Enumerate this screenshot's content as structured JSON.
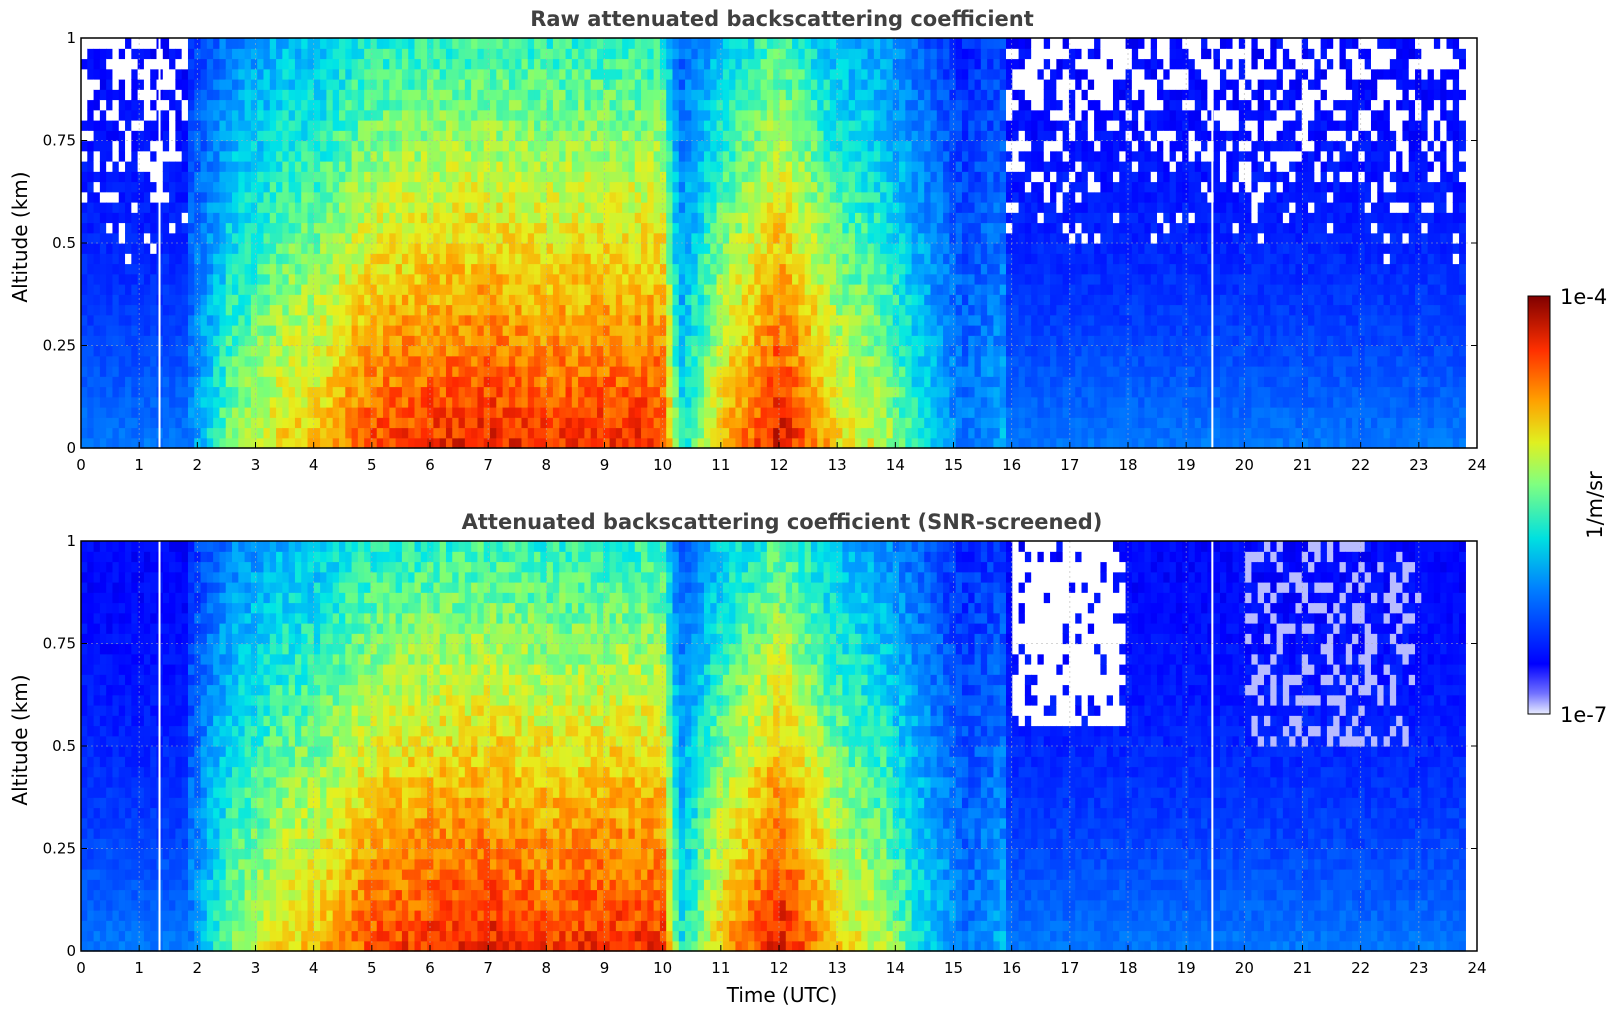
{
  "chart_data": [
    {
      "type": "heatmap",
      "title": "Raw attenuated backscattering coefficient",
      "xlabel": "",
      "ylabel": "Altitude (km)",
      "xlim": [
        0,
        24
      ],
      "ylim": [
        0,
        1
      ],
      "xticks": [
        "0",
        "1",
        "2",
        "3",
        "4",
        "5",
        "6",
        "7",
        "8",
        "9",
        "10",
        "11",
        "12",
        "13",
        "14",
        "15",
        "16",
        "17",
        "18",
        "19",
        "20",
        "21",
        "22",
        "23",
        "24"
      ],
      "yticks": [
        "0",
        "0.25",
        "0.5",
        "0.75",
        "1"
      ],
      "grid": true,
      "colormap": "jet",
      "screened": false,
      "data_end_hour": 23.8,
      "gaps_hour": [
        1.35,
        19.45
      ],
      "signal_profile": {
        "hours": [
          0,
          1.4,
          2.5,
          3.5,
          4.1,
          4.6,
          5.0,
          6.0,
          7.0,
          8.0,
          9.0,
          10.0,
          10.3,
          11.0,
          12.0,
          12.5,
          13.0,
          13.8,
          14.5,
          15.2,
          15.9,
          16.0,
          17.5,
          18.2,
          19.0,
          20.0,
          22.0,
          23.8
        ],
        "level": [
          0.1,
          0.15,
          0.55,
          0.7,
          0.72,
          0.8,
          0.85,
          0.88,
          0.9,
          0.87,
          0.88,
          0.88,
          0.45,
          0.72,
          0.93,
          0.82,
          0.7,
          0.62,
          0.45,
          0.3,
          0.38,
          0.06,
          0.06,
          0.12,
          0.06,
          0.05,
          0.05,
          0.05
        ]
      }
    },
    {
      "type": "heatmap",
      "title": "Attenuated backscattering coefficient (SNR-screened)",
      "xlabel": "Time (UTC)",
      "ylabel": "Altitude (km)",
      "xlim": [
        0,
        24
      ],
      "ylim": [
        0,
        1
      ],
      "xticks": [
        "0",
        "1",
        "2",
        "3",
        "4",
        "5",
        "6",
        "7",
        "8",
        "9",
        "10",
        "11",
        "12",
        "13",
        "14",
        "15",
        "16",
        "17",
        "18",
        "19",
        "20",
        "21",
        "22",
        "23",
        "24"
      ],
      "yticks": [
        "0",
        "0.25",
        "0.5",
        "0.75",
        "1"
      ],
      "grid": true,
      "colormap": "jet",
      "screened": true,
      "data_end_hour": 23.8,
      "gaps_hour": [
        1.35,
        19.45
      ],
      "signal_profile": {
        "hours": [
          0,
          1.4,
          2.5,
          3.5,
          4.1,
          4.6,
          5.0,
          6.0,
          7.0,
          8.0,
          9.0,
          10.0,
          10.3,
          11.0,
          12.0,
          12.5,
          13.0,
          13.8,
          14.5,
          15.2,
          15.9,
          16.0,
          17.5,
          18.2,
          19.0,
          20.0,
          22.0,
          23.8
        ],
        "level": [
          0.1,
          0.15,
          0.55,
          0.7,
          0.72,
          0.8,
          0.85,
          0.88,
          0.9,
          0.87,
          0.88,
          0.88,
          0.45,
          0.72,
          0.93,
          0.82,
          0.7,
          0.62,
          0.45,
          0.3,
          0.38,
          0.06,
          0.06,
          0.12,
          0.06,
          0.05,
          0.05,
          0.05
        ]
      }
    }
  ],
  "colorbar": {
    "label": "1/m/sr",
    "max_label": "1e-4",
    "min_label": "1e-7",
    "range": [
      1e-07,
      0.0001
    ],
    "scale": "log"
  }
}
